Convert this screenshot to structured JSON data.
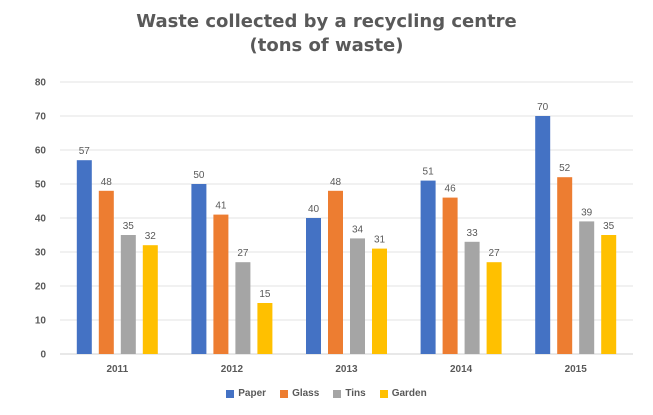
{
  "chart_data": {
    "type": "bar",
    "title": "Waste collected by a recycling centre",
    "subtitle": "(tons of waste)",
    "xlabel": "",
    "ylabel": "",
    "categories": [
      "2011",
      "2012",
      "2013",
      "2014",
      "2015"
    ],
    "series": [
      {
        "name": "Paper",
        "color": "#4472C4",
        "values": [
          57,
          50,
          40,
          51,
          70
        ]
      },
      {
        "name": "Glass",
        "color": "#ED7D31",
        "values": [
          48,
          41,
          48,
          46,
          52
        ]
      },
      {
        "name": "Tins",
        "color": "#A5A5A5",
        "values": [
          35,
          27,
          34,
          33,
          39
        ]
      },
      {
        "name": "Garden",
        "color": "#FFC000",
        "values": [
          32,
          15,
          31,
          27,
          35
        ]
      }
    ],
    "ylim": [
      0,
      80
    ],
    "yticks": [
      0,
      10,
      20,
      30,
      40,
      50,
      60,
      70,
      80
    ],
    "grid": true,
    "legend_position": "bottom"
  }
}
